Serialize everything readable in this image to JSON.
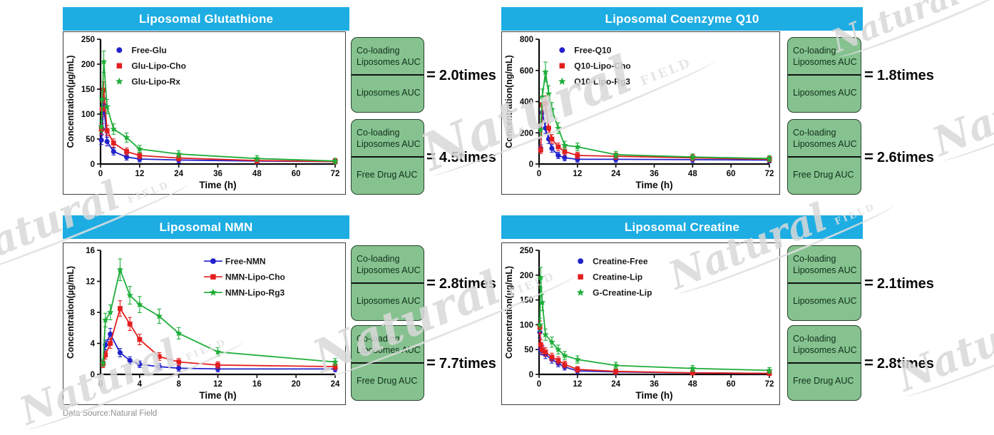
{
  "page": {
    "footer": "Data Source:Natural Field",
    "equals": "=",
    "watermark": {
      "text": "Natural",
      "sub": "FIELD"
    }
  },
  "colors": {
    "header_bg": "#1dade3",
    "header_text": "#ffffff",
    "auc_box_bg": "#85c28f",
    "blue": "#2222cc",
    "red": "#e31e1e",
    "green": "#1fae3a"
  },
  "cards": [
    {
      "title": "Liposomal Glutathione",
      "ratios": [
        {
          "top": "Co-loading Liposomes AUC",
          "bottom": "Liposomes AUC",
          "value": "2.0times"
        },
        {
          "top": "Co-loading Liposomes AUC",
          "bottom": "Free Drug AUC",
          "value": "4.5times"
        }
      ]
    },
    {
      "title": "Liposomal Coenzyme Q10",
      "ratios": [
        {
          "top": "Co-loading Liposomes AUC",
          "bottom": "Liposomes AUC",
          "value": "1.8times"
        },
        {
          "top": "Co-loading Liposomes AUC",
          "bottom": "Free Drug AUC",
          "value": "2.6times"
        }
      ]
    },
    {
      "title": "Liposomal NMN",
      "ratios": [
        {
          "top": "Co-loading Liposomes AUC",
          "bottom": "Liposomes AUC",
          "value": "2.8times"
        },
        {
          "top": "Co-loading Liposomes AUC",
          "bottom": "Free Drug AUC",
          "value": "7.7times"
        }
      ]
    },
    {
      "title": "Liposomal Creatine",
      "ratios": [
        {
          "top": "Co-loading Liposomes AUC",
          "bottom": "Liposomes AUC",
          "value": "2.1times"
        },
        {
          "top": "Co-loading Liposomes AUC",
          "bottom": "Free Drug AUC",
          "value": "2.8times"
        }
      ]
    }
  ],
  "chart_data": [
    {
      "type": "line",
      "title": "Liposomal Glutathione",
      "xlabel": "Time (h)",
      "ylabel": "Concentration(µg/mL)",
      "xlim": [
        0,
        72
      ],
      "ylim": [
        0,
        250
      ],
      "xticks": [
        0,
        12,
        24,
        36,
        48,
        60,
        72
      ],
      "yticks": [
        0,
        50,
        100,
        150,
        200,
        250
      ],
      "grid": false,
      "legend": {
        "x": 0.08,
        "y": 0.03,
        "line": false,
        "position": "top-left-inside"
      },
      "x": [
        0.25,
        0.5,
        1,
        2,
        4,
        8,
        12,
        24,
        48,
        72
      ],
      "series": [
        {
          "name": "Free-Glu",
          "color": "blue",
          "marker": "circle",
          "values": [
            48,
            70,
            118,
            45,
            25,
            14,
            10,
            8,
            6,
            5
          ]
        },
        {
          "name": "Glu-Lipo-Cho",
          "color": "red",
          "marker": "square",
          "values": [
            70,
            110,
            148,
            67,
            42,
            25,
            17,
            12,
            7,
            5
          ]
        },
        {
          "name": "Glu-Lipo-Rx",
          "color": "green",
          "marker": "star",
          "values": [
            75,
            130,
            205,
            115,
            70,
            53,
            30,
            20,
            11,
            6
          ]
        }
      ]
    },
    {
      "type": "line",
      "title": "Liposomal Coenzyme Q10",
      "xlabel": "Time (h)",
      "ylabel": "Concentration(ng/mL)",
      "xlim": [
        0,
        72
      ],
      "ylim": [
        0,
        800
      ],
      "xticks": [
        0,
        12,
        24,
        36,
        48,
        60,
        72
      ],
      "yticks": [
        0,
        200,
        400,
        600,
        800
      ],
      "grid": false,
      "legend": {
        "x": 0.1,
        "y": 0.03,
        "line": false,
        "position": "top-left-inside"
      },
      "x": [
        0.5,
        1,
        2,
        3,
        4,
        6,
        8,
        12,
        24,
        48,
        72
      ],
      "series": [
        {
          "name": "Free-Q10",
          "color": "blue",
          "marker": "circle",
          "values": [
            100,
            330,
            230,
            160,
            100,
            55,
            40,
            30,
            30,
            28,
            25
          ]
        },
        {
          "name": "Q10-Lipo-Cho",
          "color": "red",
          "marker": "square",
          "values": [
            90,
            380,
            390,
            230,
            160,
            110,
            80,
            55,
            50,
            40,
            30
          ]
        },
        {
          "name": "Q10-Lipo-Rg3",
          "color": "green",
          "marker": "star",
          "values": [
            220,
            430,
            590,
            450,
            350,
            230,
            120,
            110,
            60,
            45,
            35
          ]
        }
      ]
    },
    {
      "type": "line",
      "title": "Liposomal NMN",
      "xlabel": "Time (h)",
      "ylabel": "Concentration(µg/mL)",
      "xlim": [
        0,
        24
      ],
      "ylim": [
        0,
        16
      ],
      "xticks": [
        0,
        4,
        8,
        12,
        16,
        20,
        24
      ],
      "yticks": [
        0,
        4,
        8,
        12,
        16
      ],
      "grid": false,
      "legend": {
        "x": 0.48,
        "y": 0.03,
        "line": true,
        "position": "top-center-inside"
      },
      "x": [
        0.25,
        0.5,
        1,
        2,
        3,
        4,
        6,
        8,
        12,
        24
      ],
      "series": [
        {
          "name": "Free-NMN",
          "color": "blue",
          "marker": "circle",
          "values": [
            1.5,
            3.8,
            5.2,
            2.8,
            1.8,
            1.3,
            1.0,
            0.8,
            0.7,
            0.7
          ]
        },
        {
          "name": "NMN-Lipo-Cho",
          "color": "red",
          "marker": "square",
          "values": [
            1.3,
            2.5,
            4.0,
            8.5,
            6.5,
            4.5,
            2.3,
            1.6,
            1.2,
            1.0
          ]
        },
        {
          "name": "NMN-Lipo-Rg3",
          "color": "green",
          "marker": "star",
          "values": [
            1.5,
            7.0,
            8.0,
            13.5,
            10.2,
            9.0,
            7.5,
            5.3,
            2.9,
            1.6
          ]
        }
      ]
    },
    {
      "type": "line",
      "title": "Liposomal Creatine",
      "xlabel": "Time (h)",
      "ylabel": "Concentration(µg/mL)",
      "xlim": [
        0,
        72
      ],
      "ylim": [
        0,
        250
      ],
      "xticks": [
        0,
        12,
        24,
        36,
        48,
        60,
        72
      ],
      "yticks": [
        0,
        50,
        100,
        150,
        200,
        250
      ],
      "grid": false,
      "legend": {
        "x": 0.18,
        "y": 0.03,
        "line": false,
        "position": "top-left-inside"
      },
      "x": [
        0.25,
        0.5,
        1,
        2,
        4,
        6,
        8,
        12,
        24,
        48,
        72
      ],
      "series": [
        {
          "name": "Creatine-Free",
          "color": "blue",
          "marker": "circle",
          "values": [
            85,
            50,
            48,
            40,
            30,
            22,
            15,
            7,
            5,
            3,
            2
          ]
        },
        {
          "name": "Creatine-Lip",
          "color": "red",
          "marker": "square",
          "values": [
            95,
            60,
            50,
            45,
            35,
            28,
            20,
            10,
            6,
            3,
            2
          ]
        },
        {
          "name": "G-Creatine-Lip",
          "color": "green",
          "marker": "star",
          "values": [
            100,
            195,
            145,
            80,
            65,
            50,
            38,
            30,
            18,
            12,
            8
          ]
        }
      ]
    }
  ]
}
